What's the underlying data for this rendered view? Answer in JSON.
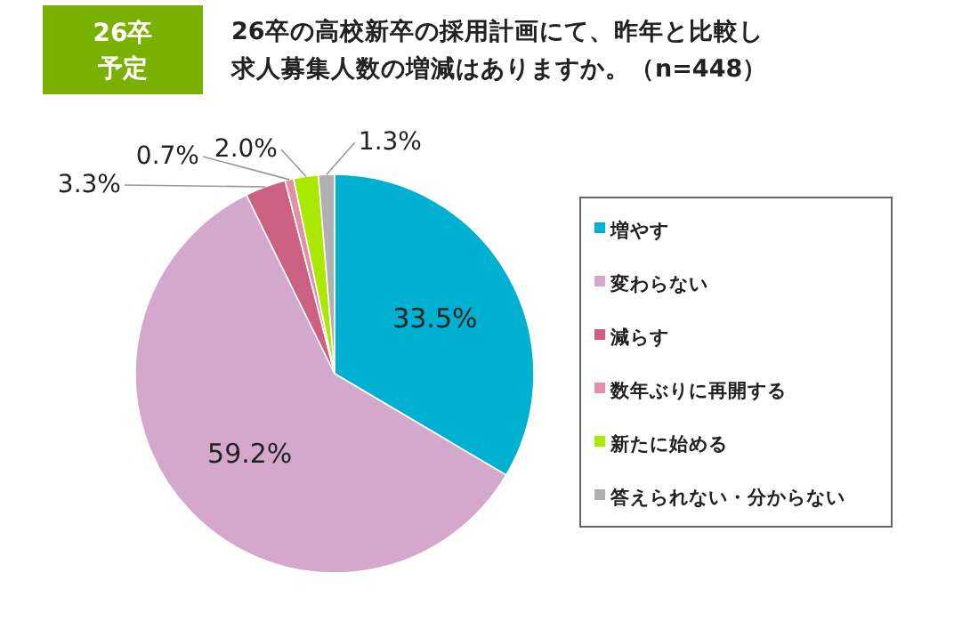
{
  "chart_data": {
    "type": "pie",
    "title": "26卒の高校新卒の採用計画にて、昨年と比較し",
    "subtitle": "求人募集人数の増減はありますか。（n=448）",
    "annotations": [
      "26卒",
      "予定"
    ],
    "categories": [
      "増やす",
      "変わらない",
      "減らす",
      "数年ぶりに再開する",
      "新たに始める",
      "答えられない・分からない"
    ],
    "values": [
      33.5,
      59.2,
      3.3,
      0.7,
      2.0,
      1.3
    ],
    "colors": [
      "#00b0d0",
      "#d4a8cc",
      "#cc6080",
      "#e090a8",
      "#aae800",
      "#b0b0b0"
    ],
    "value_labels": [
      "33.5%",
      "59.2%",
      "3.3%",
      "0.7%",
      "2.0%",
      "1.3%"
    ],
    "legend": "right"
  }
}
